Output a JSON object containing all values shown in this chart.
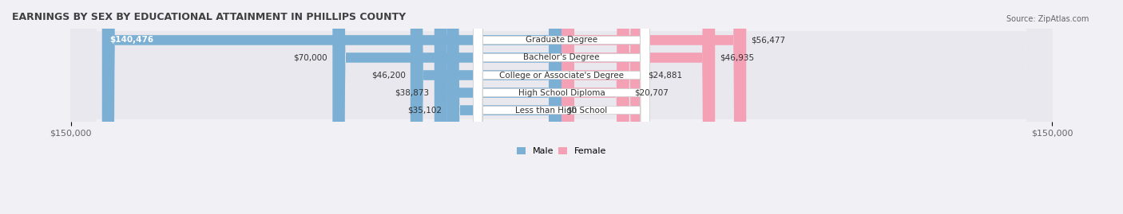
{
  "title": "EARNINGS BY SEX BY EDUCATIONAL ATTAINMENT IN PHILLIPS COUNTY",
  "source": "Source: ZipAtlas.com",
  "categories": [
    "Less than High School",
    "High School Diploma",
    "College or Associate's Degree",
    "Bachelor's Degree",
    "Graduate Degree"
  ],
  "male_values": [
    35102,
    38873,
    46200,
    70000,
    140476
  ],
  "female_values": [
    0,
    20707,
    24881,
    46935,
    56477
  ],
  "male_labels": [
    "$35,102",
    "$38,873",
    "$46,200",
    "$70,000",
    "$140,476"
  ],
  "female_labels": [
    "$0",
    "$20,707",
    "$24,881",
    "$46,935",
    "$56,477"
  ],
  "max_value": 150000,
  "male_color": "#7bafd4",
  "female_color": "#f4a0b5",
  "male_color_dark": "#5b8db8",
  "female_color_dark": "#e8708a",
  "bg_color": "#f0f0f5",
  "row_bg": "#e8e8ee",
  "label_color": "#333333",
  "title_color": "#404040",
  "axis_label_color": "#666666",
  "legend_male_color": "#7bafd4",
  "legend_female_color": "#f4a0b5"
}
